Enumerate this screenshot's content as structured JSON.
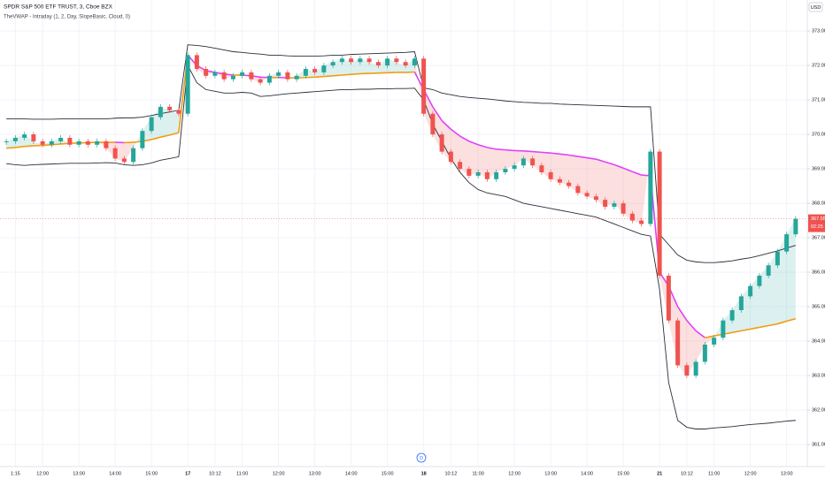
{
  "chart_data": {
    "type": "candlestick",
    "title": "SPDR S&P 500 ETF TRUST, 3, Cboe BZX",
    "subtitle": "TheVWAP - Intraday (1, 2, Day, SlopeBasic, Cloud, 0)",
    "currency": "USD",
    "current_price": {
      "value": 367.55,
      "label": "367.55"
    },
    "countdown": "02:25",
    "marker": "D",
    "categories": [
      null,
      "1:15",
      null,
      null,
      "12:00",
      null,
      null,
      null,
      "13:00",
      null,
      null,
      null,
      "14:00",
      null,
      null,
      null,
      "15:00",
      null,
      null,
      null,
      "17",
      null,
      null,
      "10:12",
      null,
      null,
      "11:00",
      null,
      null,
      null,
      "12:00",
      null,
      null,
      null,
      "13:00",
      null,
      null,
      null,
      "14:00",
      null,
      null,
      null,
      "15:00",
      null,
      null,
      null,
      "18",
      null,
      null,
      "10:12",
      null,
      null,
      "11:00",
      null,
      null,
      null,
      "12:00",
      null,
      null,
      null,
      "13:00",
      null,
      null,
      null,
      "14:00",
      null,
      null,
      null,
      "15:00",
      null,
      null,
      null,
      "21",
      null,
      null,
      "10:12",
      null,
      null,
      "11:00",
      null,
      null,
      null,
      "12:00",
      null,
      null,
      null,
      "13:00",
      null
    ],
    "series": [
      {
        "name": "Price",
        "up_color": "#26a69a",
        "down_color": "#ef5350",
        "values": [
          369.8,
          369.9,
          370.0,
          369.8,
          369.7,
          369.8,
          369.9,
          369.7,
          369.8,
          369.7,
          369.8,
          369.6,
          369.3,
          369.2,
          369.6,
          370.1,
          370.5,
          370.8,
          370.7,
          370.6,
          372.3,
          371.9,
          371.7,
          371.8,
          371.6,
          371.7,
          371.8,
          371.6,
          371.5,
          371.7,
          371.8,
          371.6,
          371.7,
          371.9,
          371.8,
          372.0,
          372.1,
          372.2,
          372.1,
          372.2,
          372.1,
          372.0,
          372.2,
          372.1,
          372.0,
          372.2,
          370.6,
          370.0,
          369.5,
          369.2,
          369.0,
          368.8,
          368.9,
          368.7,
          368.9,
          369.0,
          369.1,
          369.3,
          369.1,
          368.9,
          368.7,
          368.6,
          368.5,
          368.3,
          368.2,
          368.1,
          367.9,
          368.0,
          367.7,
          367.5,
          367.4,
          369.5,
          365.9,
          364.6,
          363.3,
          363.0,
          363.4,
          363.9,
          364.1,
          364.6,
          364.9,
          365.3,
          365.6,
          365.9,
          366.2,
          366.6,
          367.1,
          367.55
        ]
      },
      {
        "name": "VWAP",
        "up_color": "#f39c12",
        "down_color": "#e040fb",
        "values": [
          369.6,
          369.62,
          369.65,
          369.67,
          369.68,
          369.7,
          369.72,
          369.74,
          369.75,
          369.76,
          369.77,
          369.77,
          369.77,
          369.76,
          369.77,
          369.8,
          369.85,
          369.92,
          369.98,
          370.05,
          372.3,
          372.0,
          371.85,
          371.8,
          371.75,
          371.72,
          371.72,
          371.7,
          371.66,
          371.65,
          371.65,
          371.64,
          371.64,
          371.65,
          371.66,
          371.68,
          371.7,
          371.72,
          371.74,
          371.76,
          371.77,
          371.78,
          371.79,
          371.8,
          371.8,
          371.81,
          371.3,
          370.8,
          370.4,
          370.15,
          369.95,
          369.8,
          369.7,
          369.62,
          369.57,
          369.55,
          369.53,
          369.52,
          369.5,
          369.48,
          369.46,
          369.43,
          369.4,
          369.36,
          369.32,
          369.28,
          369.2,
          369.12,
          369.02,
          368.92,
          368.82,
          368.8,
          366.0,
          365.6,
          365.0,
          364.6,
          364.3,
          364.1,
          364.15,
          364.2,
          364.25,
          364.3,
          364.35,
          364.4,
          364.45,
          364.5,
          364.58,
          364.65
        ]
      },
      {
        "name": "Upper band",
        "color": "#2a2e39",
        "values": [
          370.45,
          370.45,
          370.45,
          370.44,
          370.44,
          370.44,
          370.45,
          370.45,
          370.45,
          370.45,
          370.45,
          370.45,
          370.47,
          370.48,
          370.48,
          370.5,
          370.55,
          370.6,
          370.65,
          370.7,
          372.6,
          372.58,
          372.55,
          372.5,
          372.45,
          372.4,
          372.38,
          372.35,
          372.33,
          372.3,
          372.3,
          372.28,
          372.27,
          372.27,
          372.27,
          372.28,
          372.3,
          372.3,
          372.32,
          372.33,
          372.34,
          372.35,
          372.36,
          372.37,
          372.38,
          372.4,
          371.35,
          371.3,
          371.2,
          371.15,
          371.1,
          371.07,
          371.05,
          371.03,
          371.0,
          370.97,
          370.95,
          370.93,
          370.92,
          370.9,
          370.9,
          370.88,
          370.87,
          370.86,
          370.85,
          370.84,
          370.83,
          370.82,
          370.81,
          370.8,
          370.8,
          370.8,
          367.1,
          366.8,
          366.5,
          366.35,
          366.3,
          366.28,
          366.28,
          366.3,
          366.33,
          366.38,
          366.42,
          366.48,
          366.55,
          366.62,
          366.7,
          366.78
        ]
      },
      {
        "name": "Lower band",
        "color": "#2a2e39",
        "values": [
          369.15,
          369.12,
          369.1,
          369.12,
          369.13,
          369.14,
          369.15,
          369.16,
          369.16,
          369.16,
          369.17,
          369.18,
          369.17,
          369.12,
          369.1,
          369.12,
          369.17,
          369.25,
          369.3,
          369.35,
          372.0,
          371.5,
          371.3,
          371.25,
          371.2,
          371.2,
          371.22,
          371.2,
          371.1,
          371.12,
          371.15,
          371.18,
          371.2,
          371.22,
          371.24,
          371.26,
          371.28,
          371.3,
          371.3,
          371.31,
          371.31,
          371.32,
          371.32,
          371.33,
          371.33,
          371.34,
          371.0,
          370.3,
          369.8,
          369.3,
          368.9,
          368.6,
          368.4,
          368.3,
          368.25,
          368.2,
          368.1,
          368.0,
          367.95,
          367.9,
          367.85,
          367.8,
          367.75,
          367.7,
          367.65,
          367.6,
          367.5,
          367.4,
          367.3,
          367.2,
          367.1,
          367.05,
          365.5,
          362.8,
          361.7,
          361.5,
          361.45,
          361.45,
          361.48,
          361.5,
          361.52,
          361.55,
          361.58,
          361.6,
          361.62,
          361.65,
          361.68,
          361.7
        ]
      }
    ],
    "cloud": {
      "up_color": "rgba(38,166,154,0.16)",
      "down_color": "rgba(239,83,80,0.18)"
    },
    "ylim": [
      360.36,
      373.9
    ],
    "yticks": [
      {
        "value": 361,
        "label": "361.00"
      },
      {
        "value": 362,
        "label": "362.00"
      },
      {
        "value": 363,
        "label": "363.00"
      },
      {
        "value": 364,
        "label": "364.00"
      },
      {
        "value": 365,
        "label": "365.00"
      },
      {
        "value": 366,
        "label": "366.00"
      },
      {
        "value": 367,
        "label": "367.00"
      },
      {
        "value": 368,
        "label": "368.00"
      },
      {
        "value": 369,
        "label": "369.00"
      },
      {
        "value": 370,
        "label": "370.00"
      },
      {
        "value": 371,
        "label": "371.00"
      },
      {
        "value": 372,
        "label": "372.00"
      },
      {
        "value": 373,
        "label": "373.00"
      }
    ],
    "grid": true
  }
}
